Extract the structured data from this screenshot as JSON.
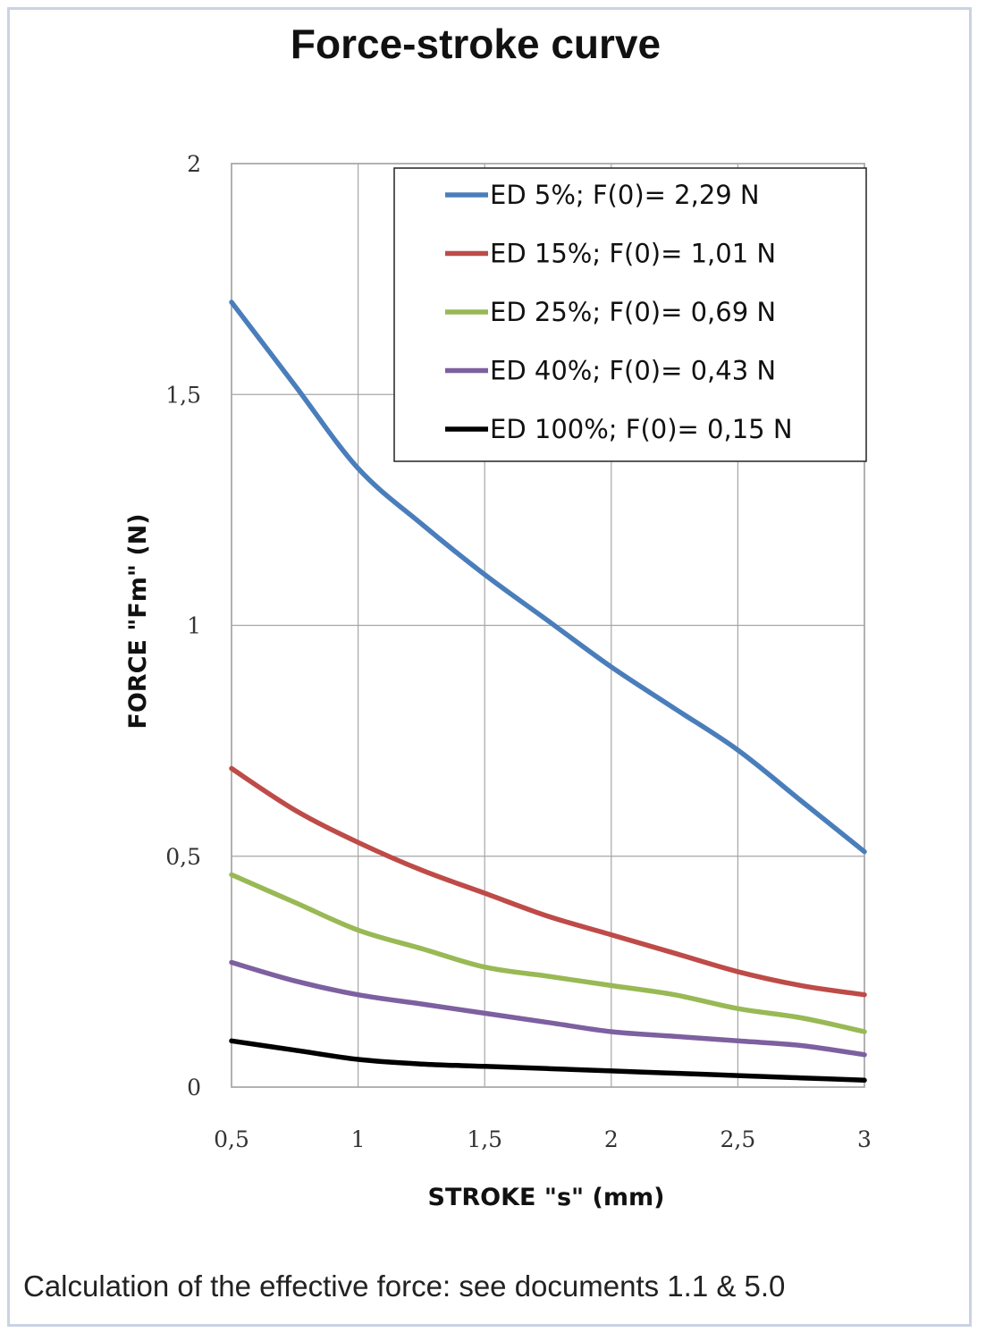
{
  "caption": "Calculation of the effective force: see documents 1.1 & 5.0",
  "chart_data": {
    "type": "line",
    "title": "Force-stroke curve",
    "xlabel": "STROKE \"s\" (mm)",
    "ylabel": "FORCE \"Fm\" (N)",
    "xlim": [
      0.5,
      3
    ],
    "ylim": [
      0,
      2
    ],
    "x_ticks": [
      0.5,
      1,
      1.5,
      2,
      2.5,
      3
    ],
    "x_tick_labels": [
      "0,5",
      "1",
      "1,5",
      "2",
      "2,5",
      "3"
    ],
    "y_ticks": [
      0,
      0.5,
      1,
      1.5,
      2
    ],
    "y_tick_labels": [
      "0",
      "0,5",
      "1",
      "1,5",
      "2"
    ],
    "grid": true,
    "legend_position": "top-right",
    "x": [
      0.5,
      0.75,
      1,
      1.25,
      1.5,
      1.75,
      2,
      2.25,
      2.5,
      2.75,
      3
    ],
    "series": [
      {
        "name": "ED 5%; F(0)= 2,29 N",
        "color": "#4a7ebb",
        "values": [
          1.7,
          1.52,
          1.34,
          1.22,
          1.11,
          1.01,
          0.91,
          0.82,
          0.73,
          0.62,
          0.51
        ]
      },
      {
        "name": "ED 15%; F(0)= 1,01 N",
        "color": "#be4b48",
        "values": [
          0.69,
          0.6,
          0.53,
          0.47,
          0.42,
          0.37,
          0.33,
          0.29,
          0.25,
          0.22,
          0.2
        ]
      },
      {
        "name": "ED 25%; F(0)= 0,69 N",
        "color": "#98b954",
        "values": [
          0.46,
          0.4,
          0.34,
          0.3,
          0.26,
          0.24,
          0.22,
          0.2,
          0.17,
          0.15,
          0.12
        ]
      },
      {
        "name": "ED 40%; F(0)= 0,43 N",
        "color": "#7d60a0",
        "values": [
          0.27,
          0.23,
          0.2,
          0.18,
          0.16,
          0.14,
          0.12,
          0.11,
          0.1,
          0.09,
          0.07
        ]
      },
      {
        "name": "ED 100%; F(0)= 0,15 N",
        "color": "#000000",
        "values": [
          0.1,
          0.08,
          0.06,
          0.05,
          0.045,
          0.04,
          0.035,
          0.03,
          0.025,
          0.02,
          0.015
        ]
      }
    ]
  }
}
